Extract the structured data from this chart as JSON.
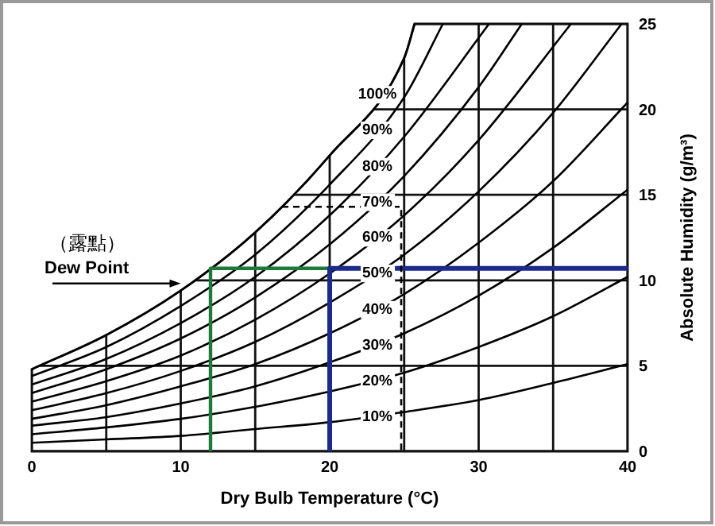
{
  "chart_data": {
    "type": "line",
    "xlabel": "Dry Bulb Temperature (°C)",
    "ylabel": "Absolute Humidity (g/m³)",
    "xlim": [
      0,
      40
    ],
    "ylim": [
      0,
      25
    ],
    "xticks": [
      0,
      {
        "value": 5,
        "label": null
      },
      10,
      {
        "value": 15,
        "label": null
      },
      20,
      {
        "value": 25,
        "label": null
      },
      30,
      {
        "value": 35,
        "label": null
      },
      40
    ],
    "yticks": [
      0,
      5,
      10,
      15,
      20,
      25
    ],
    "grid": true,
    "annotations": [
      "（露點）",
      {
        "text": "Dew Point",
        "x": 10,
        "y": 10
      }
    ],
    "series": [
      {
        "name": "100%",
        "color": "#000000",
        "x": [
          0,
          5,
          10,
          15,
          20,
          25,
          25.7
        ],
        "values": [
          4.8,
          6.8,
          9.4,
          12.8,
          17.3,
          23.0,
          25
        ]
      },
      {
        "name": "90%",
        "color": "#000000",
        "x": [
          0,
          5,
          10,
          15,
          20,
          25,
          27.6
        ],
        "values": [
          4.4,
          6.1,
          8.5,
          11.5,
          15.6,
          20.7,
          25
        ]
      },
      {
        "name": "80%",
        "color": "#000000",
        "x": [
          0,
          5,
          10,
          15,
          20,
          25,
          30.7
        ],
        "values": [
          3.9,
          5.4,
          7.5,
          10.2,
          13.8,
          18.4,
          25
        ]
      },
      {
        "name": "70%",
        "color": "#000000",
        "x": [
          0,
          5,
          10,
          15,
          20,
          25,
          30,
          32.9
        ],
        "values": [
          3.4,
          4.8,
          6.6,
          9.0,
          12.1,
          16.1,
          21.3,
          25
        ]
      },
      {
        "name": "60%",
        "color": "#000000",
        "x": [
          0,
          5,
          10,
          15,
          20,
          25,
          30,
          36.2
        ],
        "values": [
          2.9,
          4.1,
          5.6,
          7.7,
          10.4,
          13.8,
          18.2,
          25
        ]
      },
      {
        "name": "50%",
        "color": "#000000",
        "x": [
          0,
          5,
          10,
          15,
          20,
          25,
          30,
          35,
          39.6
        ],
        "values": [
          2.4,
          3.4,
          4.7,
          6.4,
          8.7,
          11.5,
          15.2,
          19.8,
          25
        ]
      },
      {
        "name": "40%",
        "color": "#000000",
        "x": [
          0,
          5,
          10,
          15,
          20,
          25,
          30,
          35,
          40
        ],
        "values": [
          1.9,
          2.7,
          3.8,
          5.1,
          6.9,
          9.2,
          12.2,
          15.8,
          20.4
        ]
      },
      {
        "name": "30%",
        "color": "#000000",
        "x": [
          0,
          5,
          10,
          15,
          20,
          25,
          30,
          35,
          40
        ],
        "values": [
          1.5,
          2.0,
          2.8,
          3.8,
          5.2,
          6.9,
          9.1,
          11.9,
          15.3
        ]
      },
      {
        "name": "20%",
        "color": "#000000",
        "x": [
          0,
          5,
          10,
          15,
          20,
          25,
          30,
          35,
          40
        ],
        "values": [
          1.0,
          1.4,
          1.9,
          2.6,
          3.5,
          4.6,
          6.1,
          7.9,
          10.2
        ]
      },
      {
        "name": "10%",
        "color": "#000000",
        "x": [
          0,
          5,
          10,
          15,
          20,
          25,
          30,
          35,
          40
        ],
        "values": [
          0.5,
          0.7,
          0.9,
          1.3,
          1.7,
          2.3,
          3.0,
          4.0,
          5.1
        ]
      },
      {
        "color": "#1e7a3c",
        "x": [
          12,
          12,
          20
        ],
        "values": [
          0,
          10.7,
          10.7
        ]
      },
      {
        "color": "#1c2a8c",
        "x": [
          20,
          20,
          40
        ],
        "values": [
          0,
          10.7,
          10.7
        ]
      },
      {
        "color": "#000000",
        "line_style": "dashed",
        "x": [
          16.8,
          24.8,
          24.8
        ],
        "values": [
          14.3,
          14.3,
          0
        ]
      }
    ]
  }
}
